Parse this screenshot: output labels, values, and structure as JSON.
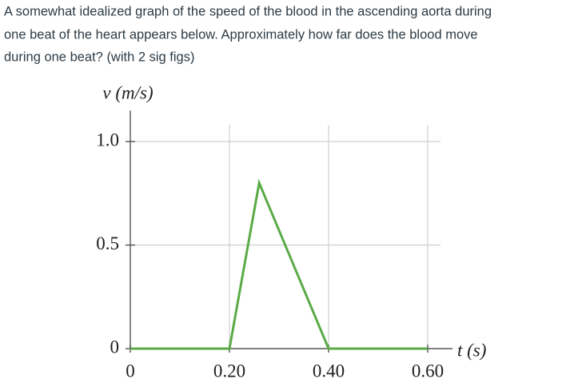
{
  "question_lines": [
    "A somewhat idealized graph of the speed of the blood in the ascending aorta during",
    "one beat of the heart appears below. Approximately how far does the blood move",
    "during one beat? (with 2 sig figs)"
  ],
  "chart_data": {
    "type": "line",
    "y_label": "v (m/s)",
    "x_label": "t (s)",
    "x": [
      0,
      0.2,
      0.26,
      0.4,
      0.6
    ],
    "series": [
      {
        "color": "#5aab47",
        "values": [
          0,
          0,
          0.8,
          0,
          0
        ]
      }
    ],
    "xlim": [
      0,
      0.65
    ],
    "ylim": [
      0,
      1.08
    ],
    "xticks": [
      0,
      {
        "value": 0.2,
        "label": "0.20"
      },
      {
        "value": 0.4,
        "label": "0.40"
      },
      {
        "value": 0.6,
        "label": "0.60"
      }
    ],
    "yticks": [
      0,
      0.5,
      {
        "value": 1,
        "label": "1.0"
      }
    ],
    "grid": true
  }
}
